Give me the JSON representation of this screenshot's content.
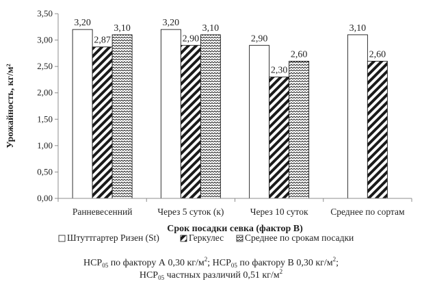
{
  "chart_data": {
    "type": "bar",
    "categories": [
      "Ранневесенний",
      "Через 5 суток (к)",
      "Через 10 суток",
      "Среднее по сортам"
    ],
    "series": [
      {
        "name": "Штуттгартер Ризен (St)",
        "values": [
          3.2,
          3.2,
          2.9,
          3.1
        ],
        "labels": [
          "3,20",
          "3,20",
          "2,90",
          "3,10"
        ]
      },
      {
        "name": "Геркулес",
        "values": [
          2.87,
          2.9,
          2.3,
          2.6
        ],
        "labels": [
          "2,87",
          "2,90",
          "2,30",
          "2,60"
        ]
      },
      {
        "name": "Среднее по срокам посадки",
        "values": [
          3.1,
          3.1,
          2.6,
          null
        ],
        "labels": [
          "3,10",
          "3,10",
          "2,60",
          ""
        ]
      }
    ],
    "ylim": [
      0,
      3.5
    ],
    "yticks": [
      "0,00",
      "0,50",
      "1,00",
      "1,50",
      "2,00",
      "2,50",
      "3,00",
      "3,50"
    ],
    "ylabel": "Урожайность, кг/м²",
    "xlabel": "Срок посадки севка (фактор В)",
    "legend_position": "bottom",
    "grid": false
  },
  "note": {
    "hcp": "НСР",
    "sub": "05",
    "unit": "кг/м",
    "sup": "2",
    "factor_a": " по фактору А 0,30 ",
    "factor_b": " по фактору В 0,30 ",
    "sep": "; ",
    "partial": " частных различий 0,51 "
  },
  "colors": {
    "axis": "#8c8c8c",
    "bar_edge": "#1a1a1a",
    "fill": "#ffffff",
    "ink": "#1a1a1a"
  }
}
